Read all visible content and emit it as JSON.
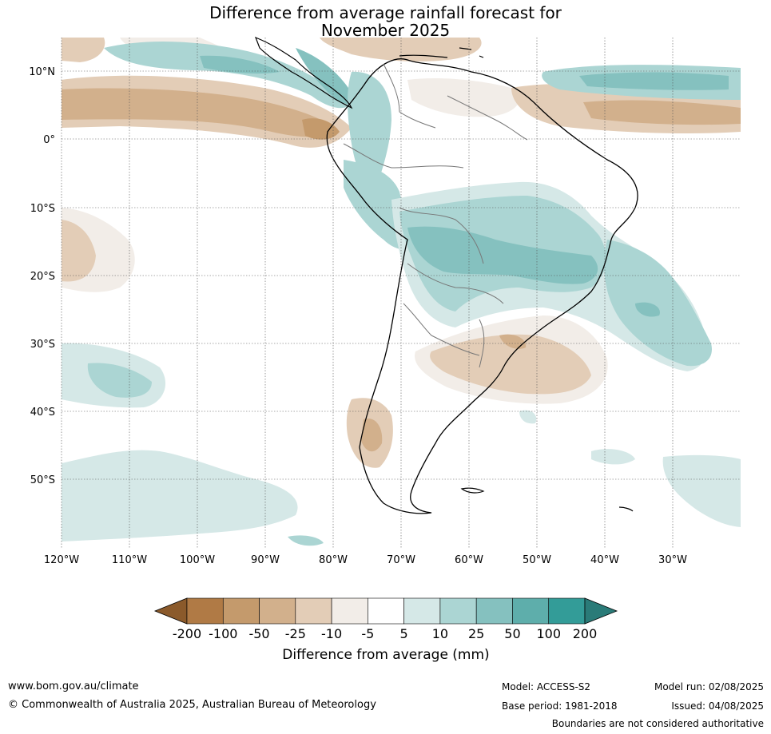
{
  "title": {
    "line1": "Difference from average rainfall forecast for",
    "line2": "November 2025"
  },
  "map": {
    "lat_labels": [
      "10°N",
      "0°",
      "10°S",
      "20°S",
      "30°S",
      "40°S",
      "50°S"
    ],
    "lon_labels": [
      "120°W",
      "110°W",
      "100°W",
      "90°W",
      "80°W",
      "70°W",
      "60°W",
      "50°W",
      "40°W",
      "30°W"
    ]
  },
  "colorbar": {
    "labels": [
      "-200",
      "-100",
      "-50",
      "-25",
      "-10",
      "-5",
      "5",
      "10",
      "25",
      "50",
      "100",
      "200"
    ],
    "colors": [
      "#8b5a2b",
      "#b07a45",
      "#c49a6c",
      "#d2b08c",
      "#e3cdb7",
      "#f2ede8",
      "#ffffff",
      "#d5e8e7",
      "#abd5d3",
      "#85c1bf",
      "#5eaeab",
      "#339c98",
      "#2a7b78"
    ],
    "axis_label": "Difference from average (mm)"
  },
  "footer": {
    "website": "www.bom.gov.au/climate",
    "copyright": "© Commonwealth of Australia 2025, Australian Bureau of Meteorology",
    "model": "Model: ACCESS-S2",
    "base_period": "Base period: 1981-2018",
    "model_run": "Model run: 02/08/2025",
    "issued": "Issued: 04/08/2025",
    "disclaimer": "Boundaries are not considered authoritative"
  }
}
